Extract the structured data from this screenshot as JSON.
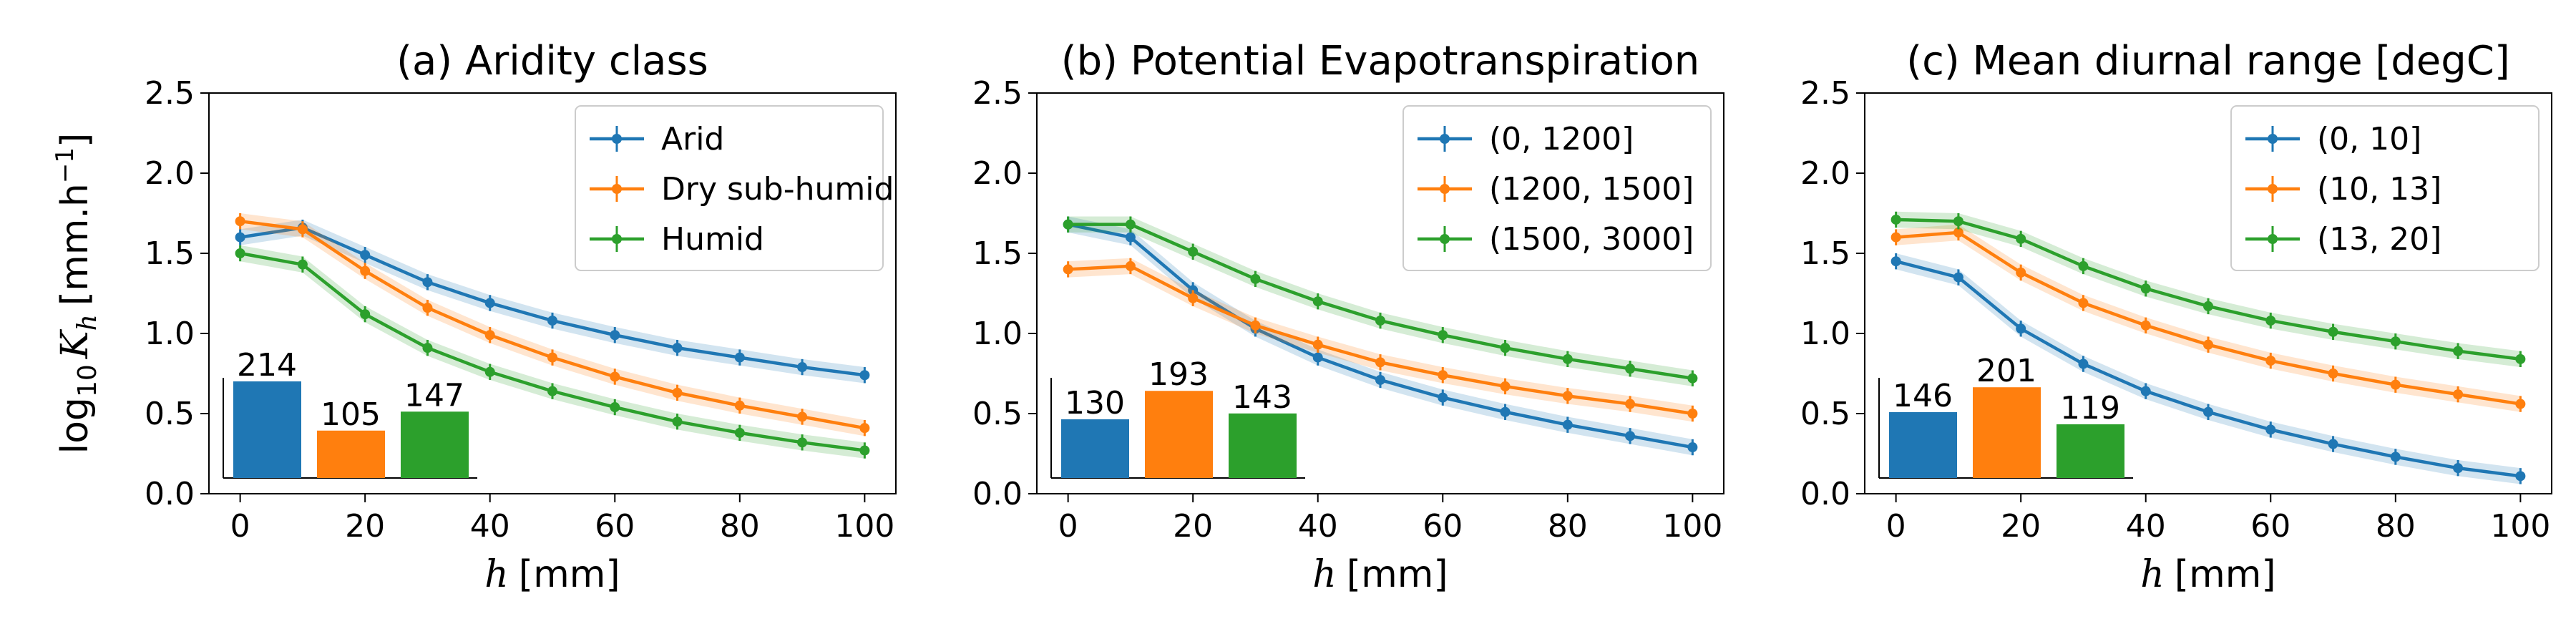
{
  "colors": {
    "blue": "#1f77b4",
    "orange": "#ff7f0e",
    "green": "#2ca02c"
  },
  "ylabel_prefix": "log",
  "ylabel_sub": "10",
  "ylabel_var": "K",
  "ylabel_var_sub": "h",
  "ylabel_unit": "[mm.h",
  "ylabel_exp": "−1",
  "ylabel_close": "]",
  "xlabel_var": "h",
  "xlabel_unit": "[mm]",
  "chart_data": [
    {
      "type": "line",
      "title": "(a) Aridity class",
      "x": [
        0,
        10,
        20,
        30,
        40,
        50,
        60,
        70,
        80,
        90,
        100
      ],
      "xlim": [
        -5,
        105
      ],
      "ylim": [
        0,
        2.5
      ],
      "xticks": [
        "0",
        "20",
        "40",
        "60",
        "80",
        "100"
      ],
      "yticks": [
        "0.0",
        "0.5",
        "1.0",
        "1.5",
        "2.0",
        "2.5"
      ],
      "legend_position": "upper-right",
      "series": [
        {
          "name": "Arid",
          "color": "#1f77b4",
          "values": [
            1.6,
            1.66,
            1.49,
            1.32,
            1.19,
            1.08,
            0.99,
            0.91,
            0.85,
            0.79,
            0.74
          ]
        },
        {
          "name": "Dry sub-humid",
          "color": "#ff7f0e",
          "values": [
            1.7,
            1.65,
            1.39,
            1.16,
            0.99,
            0.85,
            0.73,
            0.63,
            0.55,
            0.48,
            0.41
          ]
        },
        {
          "name": "Humid",
          "color": "#2ca02c",
          "values": [
            1.5,
            1.43,
            1.12,
            0.91,
            0.76,
            0.64,
            0.54,
            0.45,
            0.38,
            0.32,
            0.27
          ]
        }
      ],
      "inset_bars": [
        214,
        105,
        147
      ]
    },
    {
      "type": "line",
      "title": "(b) Potential Evapotranspiration",
      "x": [
        0,
        10,
        20,
        30,
        40,
        50,
        60,
        70,
        80,
        90,
        100
      ],
      "xlim": [
        -5,
        105
      ],
      "ylim": [
        0,
        2.5
      ],
      "xticks": [
        "0",
        "20",
        "40",
        "60",
        "80",
        "100"
      ],
      "yticks": [
        "0.0",
        "0.5",
        "1.0",
        "1.5",
        "2.0",
        "2.5"
      ],
      "legend_position": "upper-right",
      "series": [
        {
          "name": "(0, 1200]",
          "color": "#1f77b4",
          "values": [
            1.68,
            1.6,
            1.27,
            1.03,
            0.85,
            0.71,
            0.6,
            0.51,
            0.43,
            0.36,
            0.29
          ]
        },
        {
          "name": "(1200, 1500]",
          "color": "#ff7f0e",
          "values": [
            1.4,
            1.42,
            1.22,
            1.05,
            0.93,
            0.82,
            0.74,
            0.67,
            0.61,
            0.56,
            0.5
          ]
        },
        {
          "name": "(1500, 3000]",
          "color": "#2ca02c",
          "values": [
            1.68,
            1.68,
            1.51,
            1.34,
            1.2,
            1.08,
            0.99,
            0.91,
            0.84,
            0.78,
            0.72
          ]
        }
      ],
      "inset_bars": [
        130,
        193,
        143
      ]
    },
    {
      "type": "line",
      "title": "(c) Mean diurnal range [degC]",
      "x": [
        0,
        10,
        20,
        30,
        40,
        50,
        60,
        70,
        80,
        90,
        100
      ],
      "xlim": [
        -5,
        105
      ],
      "ylim": [
        0,
        2.5
      ],
      "xticks": [
        "0",
        "20",
        "40",
        "60",
        "80",
        "100"
      ],
      "yticks": [
        "0.0",
        "0.5",
        "1.0",
        "1.5",
        "2.0",
        "2.5"
      ],
      "legend_position": "upper-right",
      "series": [
        {
          "name": "(0, 10]",
          "color": "#1f77b4",
          "values": [
            1.45,
            1.35,
            1.03,
            0.81,
            0.64,
            0.51,
            0.4,
            0.31,
            0.23,
            0.16,
            0.11
          ]
        },
        {
          "name": "(10, 13]",
          "color": "#ff7f0e",
          "values": [
            1.6,
            1.63,
            1.38,
            1.19,
            1.05,
            0.93,
            0.83,
            0.75,
            0.68,
            0.62,
            0.56
          ]
        },
        {
          "name": "(13, 20]",
          "color": "#2ca02c",
          "values": [
            1.71,
            1.7,
            1.59,
            1.42,
            1.28,
            1.17,
            1.08,
            1.01,
            0.95,
            0.89,
            0.84
          ]
        }
      ],
      "inset_bars": [
        146,
        201,
        119
      ]
    }
  ]
}
